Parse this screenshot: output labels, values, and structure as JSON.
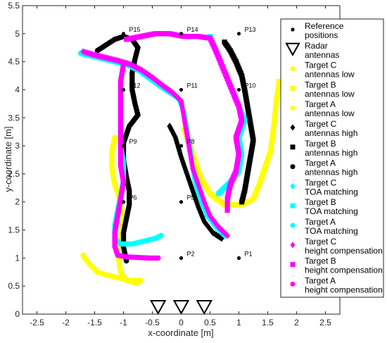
{
  "chart_data": {
    "type": "scatter",
    "title": "",
    "xlabel": "x-coordinate [m]",
    "ylabel": "y-coordinate [m]",
    "xlim": [
      -2.75,
      2.75
    ],
    "ylim": [
      0,
      5.5
    ],
    "xticks": [
      -2.5,
      -2,
      -1.5,
      -1,
      -0.5,
      0,
      0.5,
      1,
      1.5,
      2,
      2.5
    ],
    "xtick_labels": [
      "-2.5",
      "-2",
      "-1.5",
      "-1",
      "-0.5",
      "0",
      "0.5",
      "1",
      "1.5",
      "2",
      "2.5"
    ],
    "yticks": [
      0,
      0.5,
      1,
      1.5,
      2,
      2.5,
      3,
      3.5,
      4,
      4.5,
      5,
      5.5
    ],
    "ytick_labels": [
      "0",
      "0.5",
      "1",
      "1.5",
      "2",
      "2.5",
      "3",
      "3.5",
      "4",
      "4.5",
      "5",
      "5.5"
    ],
    "grid": false,
    "legend_position": "right",
    "reference_positions": [
      {
        "label": "P1",
        "x": 1.0,
        "y": 1.0
      },
      {
        "label": "P2",
        "x": 0.0,
        "y": 1.0
      },
      {
        "label": "P5",
        "x": 0.0,
        "y": 2.0
      },
      {
        "label": "P6",
        "x": -1.0,
        "y": 2.0
      },
      {
        "label": "P8",
        "x": 0.0,
        "y": 3.0
      },
      {
        "label": "P9",
        "x": -1.0,
        "y": 3.0
      },
      {
        "label": "P10",
        "x": 1.0,
        "y": 4.0
      },
      {
        "label": "P11",
        "x": 0.0,
        "y": 4.0
      },
      {
        "label": "P12",
        "x": -1.0,
        "y": 4.0
      },
      {
        "label": "P13",
        "x": 1.0,
        "y": 5.0
      },
      {
        "label": "P14",
        "x": 0.0,
        "y": 5.0
      },
      {
        "label": "P15",
        "x": -1.0,
        "y": 5.0
      }
    ],
    "radar_antennas": [
      {
        "x": -0.4,
        "y": 0.0
      },
      {
        "x": 0.0,
        "y": 0.0
      },
      {
        "x": 0.4,
        "y": 0.0
      }
    ],
    "series": [
      {
        "name": "Target C antennas low",
        "color": "#ffff00",
        "marker": "circle",
        "points": [
          [
            -1.7,
            1.05
          ],
          [
            -1.6,
            0.9
          ],
          [
            -1.45,
            0.75
          ],
          [
            -1.3,
            0.7
          ],
          [
            -1.1,
            0.65
          ],
          [
            -0.9,
            0.6
          ],
          [
            -0.75,
            0.6
          ],
          [
            -0.7,
            0.6
          ]
        ]
      },
      {
        "name": "Target B antennas low",
        "color": "#ffff00",
        "marker": "square",
        "points": [
          [
            0.05,
            3.3
          ],
          [
            0.15,
            3.0
          ],
          [
            0.25,
            2.7
          ],
          [
            0.35,
            2.4
          ],
          [
            0.5,
            2.15
          ],
          [
            0.75,
            1.95
          ],
          [
            1.05,
            1.95
          ],
          [
            1.25,
            2.05
          ],
          [
            1.35,
            2.3
          ],
          [
            1.45,
            2.6
          ],
          [
            1.55,
            2.9
          ],
          [
            1.6,
            3.3
          ],
          [
            1.65,
            3.8
          ],
          [
            1.7,
            4.15
          ]
        ]
      },
      {
        "name": "Target A antennas low",
        "color": "#ffff00",
        "marker": "circle",
        "points": [
          [
            -1.15,
            3.15
          ],
          [
            -1.2,
            2.9
          ],
          [
            -1.2,
            2.6
          ],
          [
            -1.15,
            2.3
          ],
          [
            -1.05,
            2.0
          ],
          [
            -1.0,
            1.7
          ],
          [
            -1.05,
            1.4
          ],
          [
            -1.1,
            1.1
          ],
          [
            -1.05,
            0.75
          ],
          [
            -0.95,
            0.6
          ],
          [
            -0.75,
            0.55
          ]
        ]
      },
      {
        "name": "Target C antennas high",
        "color": "#000000",
        "marker": "diamond",
        "points": [
          [
            -0.2,
            3.35
          ],
          [
            -0.1,
            3.15
          ],
          [
            0.0,
            2.8
          ],
          [
            0.1,
            2.5
          ],
          [
            0.2,
            2.2
          ],
          [
            0.3,
            1.9
          ],
          [
            0.4,
            1.65
          ],
          [
            0.55,
            1.45
          ],
          [
            0.7,
            1.35
          ]
        ]
      },
      {
        "name": "Target B antennas high",
        "color": "#000000",
        "marker": "square",
        "points": [
          [
            0.75,
            4.85
          ],
          [
            0.85,
            4.7
          ],
          [
            0.95,
            4.5
          ],
          [
            1.05,
            4.25
          ],
          [
            1.1,
            4.0
          ],
          [
            1.15,
            3.7
          ],
          [
            1.2,
            3.4
          ],
          [
            1.25,
            3.1
          ],
          [
            1.2,
            2.8
          ],
          [
            1.15,
            2.5
          ],
          [
            1.1,
            2.2
          ],
          [
            1.05,
            2.0
          ]
        ]
      },
      {
        "name": "Target A antennas high",
        "color": "#000000",
        "marker": "circle",
        "points": [
          [
            -1.45,
            4.7
          ],
          [
            -1.3,
            4.8
          ],
          [
            -1.15,
            4.9
          ],
          [
            -1.0,
            4.95
          ],
          [
            -0.85,
            4.9
          ],
          [
            -0.75,
            4.75
          ],
          [
            -0.8,
            4.55
          ],
          [
            -0.85,
            4.3
          ],
          [
            -0.85,
            4.0
          ],
          [
            -0.8,
            3.75
          ],
          [
            -0.75,
            3.55
          ],
          [
            -0.9,
            3.35
          ],
          [
            -1.0,
            3.05
          ],
          [
            -1.0,
            2.75
          ],
          [
            -0.95,
            2.45
          ],
          [
            -0.9,
            2.2
          ],
          [
            -0.9,
            1.95
          ],
          [
            -0.95,
            1.7
          ],
          [
            -1.0,
            1.45
          ],
          [
            -1.0,
            1.2
          ],
          [
            -0.95,
            0.95
          ]
        ]
      },
      {
        "name": "Target C TOA matching",
        "color": "#00ffff",
        "marker": "diamond",
        "points": [
          [
            -1.75,
            4.65
          ],
          [
            -1.55,
            4.6
          ],
          [
            -1.35,
            4.55
          ],
          [
            -1.15,
            4.5
          ],
          [
            -0.95,
            4.45
          ],
          [
            -0.75,
            4.35
          ],
          [
            -0.55,
            4.2
          ],
          [
            -0.35,
            4.05
          ],
          [
            -0.2,
            3.95
          ],
          [
            -0.05,
            3.85
          ],
          [
            0.05,
            3.6
          ],
          [
            0.1,
            3.3
          ],
          [
            0.15,
            3.0
          ],
          [
            0.2,
            2.6
          ],
          [
            0.25,
            2.3
          ],
          [
            0.35,
            2.0
          ],
          [
            0.45,
            1.75
          ],
          [
            0.6,
            1.55
          ],
          [
            0.75,
            1.4
          ]
        ]
      },
      {
        "name": "Target B TOA matching",
        "color": "#00ffff",
        "marker": "square",
        "points": [
          [
            0.5,
            4.95
          ],
          [
            0.6,
            4.7
          ],
          [
            0.7,
            4.45
          ],
          [
            0.8,
            4.2
          ],
          [
            0.9,
            3.95
          ],
          [
            1.0,
            3.7
          ],
          [
            1.1,
            3.45
          ],
          [
            1.0,
            3.15
          ],
          [
            1.05,
            2.85
          ],
          [
            1.0,
            2.55
          ],
          [
            0.85,
            2.35
          ],
          [
            0.65,
            2.15
          ]
        ]
      },
      {
        "name": "Target A TOA matching",
        "color": "#00ffff",
        "marker": "circle",
        "points": [
          [
            -1.05,
            3.35
          ],
          [
            -1.05,
            3.0
          ],
          [
            -1.0,
            2.7
          ],
          [
            -1.0,
            2.4
          ],
          [
            -1.05,
            2.1
          ],
          [
            -1.1,
            1.85
          ],
          [
            -1.15,
            1.6
          ],
          [
            -1.15,
            1.35
          ],
          [
            -1.05,
            1.25
          ],
          [
            -0.85,
            1.25
          ],
          [
            -0.65,
            1.3
          ],
          [
            -0.45,
            1.35
          ],
          [
            -0.35,
            1.4
          ]
        ]
      },
      {
        "name": "Target C height compensation",
        "color": "#ff00ff",
        "marker": "diamond",
        "points": [
          [
            -1.7,
            4.68
          ],
          [
            -1.5,
            4.62
          ],
          [
            -1.3,
            4.57
          ],
          [
            -1.1,
            4.52
          ],
          [
            -0.9,
            4.46
          ],
          [
            -0.7,
            4.36
          ],
          [
            -0.5,
            4.22
          ],
          [
            -0.3,
            4.06
          ],
          [
            -0.15,
            3.95
          ],
          [
            0.0,
            3.8
          ],
          [
            0.05,
            3.5
          ],
          [
            0.1,
            3.2
          ],
          [
            0.15,
            2.9
          ],
          [
            0.2,
            2.6
          ],
          [
            0.3,
            2.3
          ],
          [
            0.4,
            2.0
          ],
          [
            0.5,
            1.75
          ],
          [
            0.65,
            1.55
          ],
          [
            0.8,
            1.4
          ]
        ]
      },
      {
        "name": "Target B height compensation",
        "color": "#ff00ff",
        "marker": "square",
        "points": [
          [
            -0.95,
            4.9
          ],
          [
            -0.7,
            4.95
          ],
          [
            -0.45,
            5.0
          ],
          [
            -0.2,
            5.0
          ],
          [
            0.05,
            4.95
          ],
          [
            0.3,
            4.95
          ],
          [
            0.5,
            4.92
          ],
          [
            0.6,
            4.7
          ],
          [
            0.7,
            4.45
          ],
          [
            0.8,
            4.2
          ],
          [
            0.9,
            3.95
          ],
          [
            1.0,
            3.7
          ],
          [
            1.05,
            3.45
          ],
          [
            0.95,
            3.15
          ],
          [
            1.0,
            2.85
          ],
          [
            0.95,
            2.55
          ],
          [
            0.85,
            2.3
          ],
          [
            0.8,
            2.05
          ],
          [
            0.8,
            1.85
          ]
        ]
      },
      {
        "name": "Target A height compensation",
        "color": "#ff00ff",
        "marker": "circle",
        "points": [
          [
            -1.0,
            4.45
          ],
          [
            -1.05,
            4.15
          ],
          [
            -1.05,
            3.85
          ],
          [
            -1.05,
            3.55
          ],
          [
            -1.05,
            3.25
          ],
          [
            -1.05,
            2.95
          ],
          [
            -1.05,
            2.65
          ],
          [
            -1.0,
            2.35
          ],
          [
            -1.05,
            2.05
          ],
          [
            -1.1,
            1.75
          ],
          [
            -1.15,
            1.45
          ],
          [
            -1.15,
            1.2
          ],
          [
            -1.1,
            1.05
          ],
          [
            -0.95,
            1.02
          ],
          [
            -0.75,
            1.01
          ],
          [
            -0.55,
            1.0
          ],
          [
            -0.4,
            1.0
          ]
        ]
      }
    ],
    "legend": [
      {
        "marker": "dot",
        "color": "#000000",
        "line1": "Reference",
        "line2": "positions"
      },
      {
        "marker": "triangle",
        "color": "#000000",
        "line1": "Radar",
        "line2": "antennas"
      },
      {
        "marker": "circle",
        "color": "#ffff00",
        "line1": "Target C",
        "line2": "antennas low"
      },
      {
        "marker": "square",
        "color": "#ffff00",
        "line1": "Target B",
        "line2": "antennas low"
      },
      {
        "marker": "circle",
        "color": "#ffff00",
        "line1": "Target A",
        "line2": "antennas low"
      },
      {
        "marker": "diamond",
        "color": "#000000",
        "line1": "Target C",
        "line2": "antennas high"
      },
      {
        "marker": "square",
        "color": "#000000",
        "line1": "Target B",
        "line2": "antennas high"
      },
      {
        "marker": "circle",
        "color": "#000000",
        "line1": "Target A",
        "line2": "antennas high"
      },
      {
        "marker": "diamond",
        "color": "#00ffff",
        "line1": "Target C",
        "line2": "TOA matching"
      },
      {
        "marker": "square",
        "color": "#00ffff",
        "line1": "Target B",
        "line2": "TOA matching"
      },
      {
        "marker": "circle",
        "color": "#00ffff",
        "line1": "Target A",
        "line2": "TOA matching"
      },
      {
        "marker": "diamond",
        "color": "#ff00ff",
        "line1": "Target C",
        "line2": "height compensation"
      },
      {
        "marker": "square",
        "color": "#ff00ff",
        "line1": "Target B",
        "line2": "height compensation"
      },
      {
        "marker": "circle",
        "color": "#ff00ff",
        "line1": "Target A",
        "line2": "height compensation"
      }
    ]
  }
}
